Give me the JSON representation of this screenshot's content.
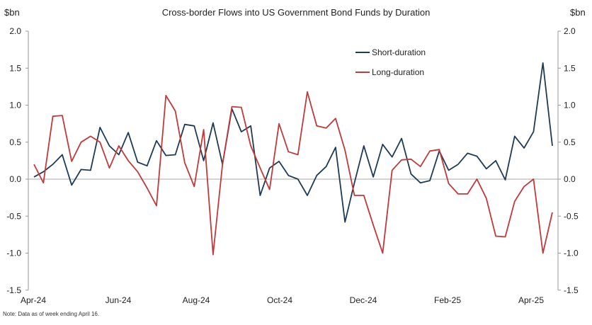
{
  "chart_data": {
    "type": "line",
    "title": "Cross-border Flows into US Government Bond Funds by Duration",
    "ylabel_left": "$bn",
    "ylabel_right": "$bn",
    "ylim": [
      -1.5,
      2.0
    ],
    "yticks": [
      "2.0",
      "1.5",
      "1.0",
      "0.5",
      "0.0",
      "-0.5",
      "-1.0",
      "-1.5"
    ],
    "ytick_values": [
      2.0,
      1.5,
      1.0,
      0.5,
      0.0,
      -0.5,
      -1.0,
      -1.5
    ],
    "xtick_labels": [
      "Apr-24",
      "Jun-24",
      "Aug-24",
      "Oct-24",
      "Dec-24",
      "Feb-25",
      "Apr-25"
    ],
    "legend_position": "top-right",
    "note": "Note: Data as of week ending April 16.",
    "series": [
      {
        "name": "Short-duration",
        "color": "#1f3a55",
        "values": [
          0.03,
          0.1,
          0.2,
          0.33,
          -0.08,
          0.13,
          0.12,
          0.7,
          0.45,
          0.33,
          0.63,
          0.23,
          0.18,
          0.52,
          0.32,
          0.33,
          0.74,
          0.72,
          0.25,
          0.76,
          0.2,
          0.95,
          0.64,
          0.72,
          -0.22,
          0.15,
          0.24,
          0.05,
          0.0,
          -0.22,
          0.05,
          0.17,
          0.43,
          -0.58,
          -0.05,
          0.45,
          0.03,
          0.47,
          0.3,
          0.55,
          0.07,
          -0.05,
          -0.02,
          0.38,
          0.12,
          0.2,
          0.35,
          0.31,
          0.14,
          0.25,
          -0.01,
          0.58,
          0.42,
          0.64,
          1.57,
          0.45
        ]
      },
      {
        "name": "Long-duration",
        "color": "#c0393b",
        "values": [
          0.2,
          -0.05,
          0.85,
          0.86,
          0.24,
          0.5,
          0.58,
          0.5,
          0.15,
          0.45,
          0.25,
          0.1,
          -0.12,
          -0.36,
          1.13,
          0.92,
          0.22,
          -0.1,
          0.67,
          -1.02,
          0.2,
          0.98,
          0.97,
          0.45,
          0.15,
          -0.14,
          0.75,
          0.37,
          0.33,
          1.18,
          0.72,
          0.69,
          0.82,
          0.39,
          -0.22,
          -0.22,
          -0.62,
          -1.0,
          0.12,
          0.26,
          0.27,
          0.17,
          0.38,
          0.4,
          -0.06,
          -0.2,
          -0.2,
          0.0,
          -0.26,
          -0.77,
          -0.78,
          -0.3,
          -0.1,
          0.0,
          -1.0,
          -0.45
        ]
      }
    ]
  }
}
